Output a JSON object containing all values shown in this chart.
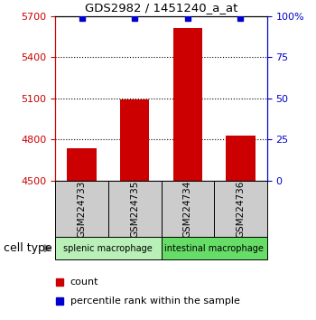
{
  "title": "GDS2982 / 1451240_a_at",
  "samples": [
    "GSM224733",
    "GSM224735",
    "GSM224734",
    "GSM224736"
  ],
  "counts": [
    4740,
    5090,
    5610,
    4830
  ],
  "percentile_ranks": [
    99,
    99,
    99,
    99
  ],
  "ylim_left": [
    4500,
    5700
  ],
  "yticks_left": [
    4500,
    4800,
    5100,
    5400,
    5700
  ],
  "ylim_right": [
    0,
    100
  ],
  "yticks_right": [
    0,
    25,
    50,
    75,
    100
  ],
  "groups": [
    {
      "label": "splenic macrophage",
      "samples": [
        0,
        1
      ],
      "color": "#b8f0b8"
    },
    {
      "label": "intestinal macrophage",
      "samples": [
        2,
        3
      ],
      "color": "#66dd66"
    }
  ],
  "bar_color": "#cc0000",
  "dot_color": "#0000cc",
  "tick_label_color_left": "#cc0000",
  "tick_label_color_right": "#0000cc",
  "sample_box_color": "#cccccc",
  "cell_type_label": "cell type",
  "legend_count_label": "count",
  "legend_percentile_label": "percentile rank within the sample",
  "bar_width": 0.55,
  "grid_lines": [
    4800,
    5100,
    5400
  ],
  "dot_size": 5
}
